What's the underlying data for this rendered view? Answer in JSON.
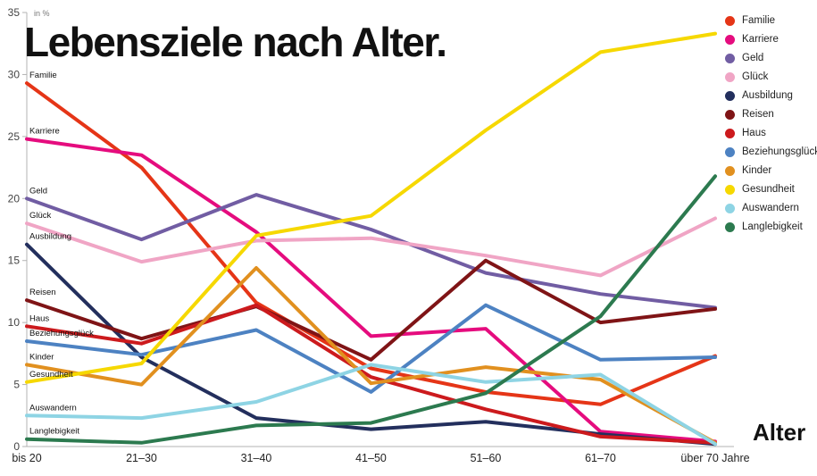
{
  "title": "Lebensziele nach Alter.",
  "unit_label": "in %",
  "axis_label_right": "Alter",
  "chart_data": {
    "type": "line",
    "title": "Lebensziele nach Alter.",
    "xlabel": "Alter",
    "ylabel": "in %",
    "ylim": [
      0,
      35
    ],
    "yticks": [
      0,
      5,
      10,
      15,
      20,
      25,
      30,
      35
    ],
    "grid": false,
    "legend_position": "top-right",
    "categories": [
      "bis 20",
      "21–30",
      "31–40",
      "41–50",
      "51–60",
      "61–70",
      "über 70 Jahre"
    ],
    "series": [
      {
        "name": "Familie",
        "color": "#e53517",
        "values": [
          29.3,
          22.5,
          11.6,
          6.3,
          4.4,
          3.4,
          7.3
        ]
      },
      {
        "name": "Karriere",
        "color": "#e50c7e",
        "values": [
          24.8,
          23.5,
          17.3,
          8.9,
          9.5,
          1.2,
          0.4
        ]
      },
      {
        "name": "Geld",
        "color": "#715da3",
        "values": [
          20.0,
          16.7,
          20.3,
          17.5,
          14.0,
          12.3,
          11.2
        ]
      },
      {
        "name": "Glück",
        "color": "#f0a5c5",
        "values": [
          18.0,
          14.9,
          16.6,
          16.8,
          15.4,
          13.8,
          18.4
        ]
      },
      {
        "name": "Ausbildung",
        "color": "#232f5d",
        "values": [
          16.3,
          7.2,
          2.3,
          1.4,
          2.0,
          1.0,
          0.2
        ]
      },
      {
        "name": "Reisen",
        "color": "#7f1416",
        "values": [
          11.8,
          8.7,
          11.3,
          7.0,
          15.0,
          10.0,
          11.1
        ]
      },
      {
        "name": "Haus",
        "color": "#cc1a1d",
        "values": [
          9.7,
          8.3,
          11.4,
          5.6,
          3.0,
          0.8,
          0.3
        ]
      },
      {
        "name": "Beziehungsglück",
        "color": "#4d82c2",
        "values": [
          8.5,
          7.4,
          9.4,
          4.4,
          11.4,
          7.0,
          7.2
        ]
      },
      {
        "name": "Kinder",
        "color": "#e1901f",
        "values": [
          6.6,
          5.0,
          14.4,
          5.1,
          6.4,
          5.4,
          0.3
        ]
      },
      {
        "name": "Gesundheit",
        "color": "#f6d800",
        "values": [
          5.2,
          6.7,
          17.0,
          18.6,
          25.5,
          31.8,
          33.3
        ]
      },
      {
        "name": "Auswandern",
        "color": "#8ed4e4",
        "values": [
          2.5,
          2.3,
          3.6,
          6.6,
          5.2,
          5.8,
          0.2
        ]
      },
      {
        "name": "Langlebigkeit",
        "color": "#2c7a4f",
        "values": [
          0.6,
          0.3,
          1.7,
          1.9,
          4.3,
          10.5,
          21.8
        ]
      }
    ]
  }
}
